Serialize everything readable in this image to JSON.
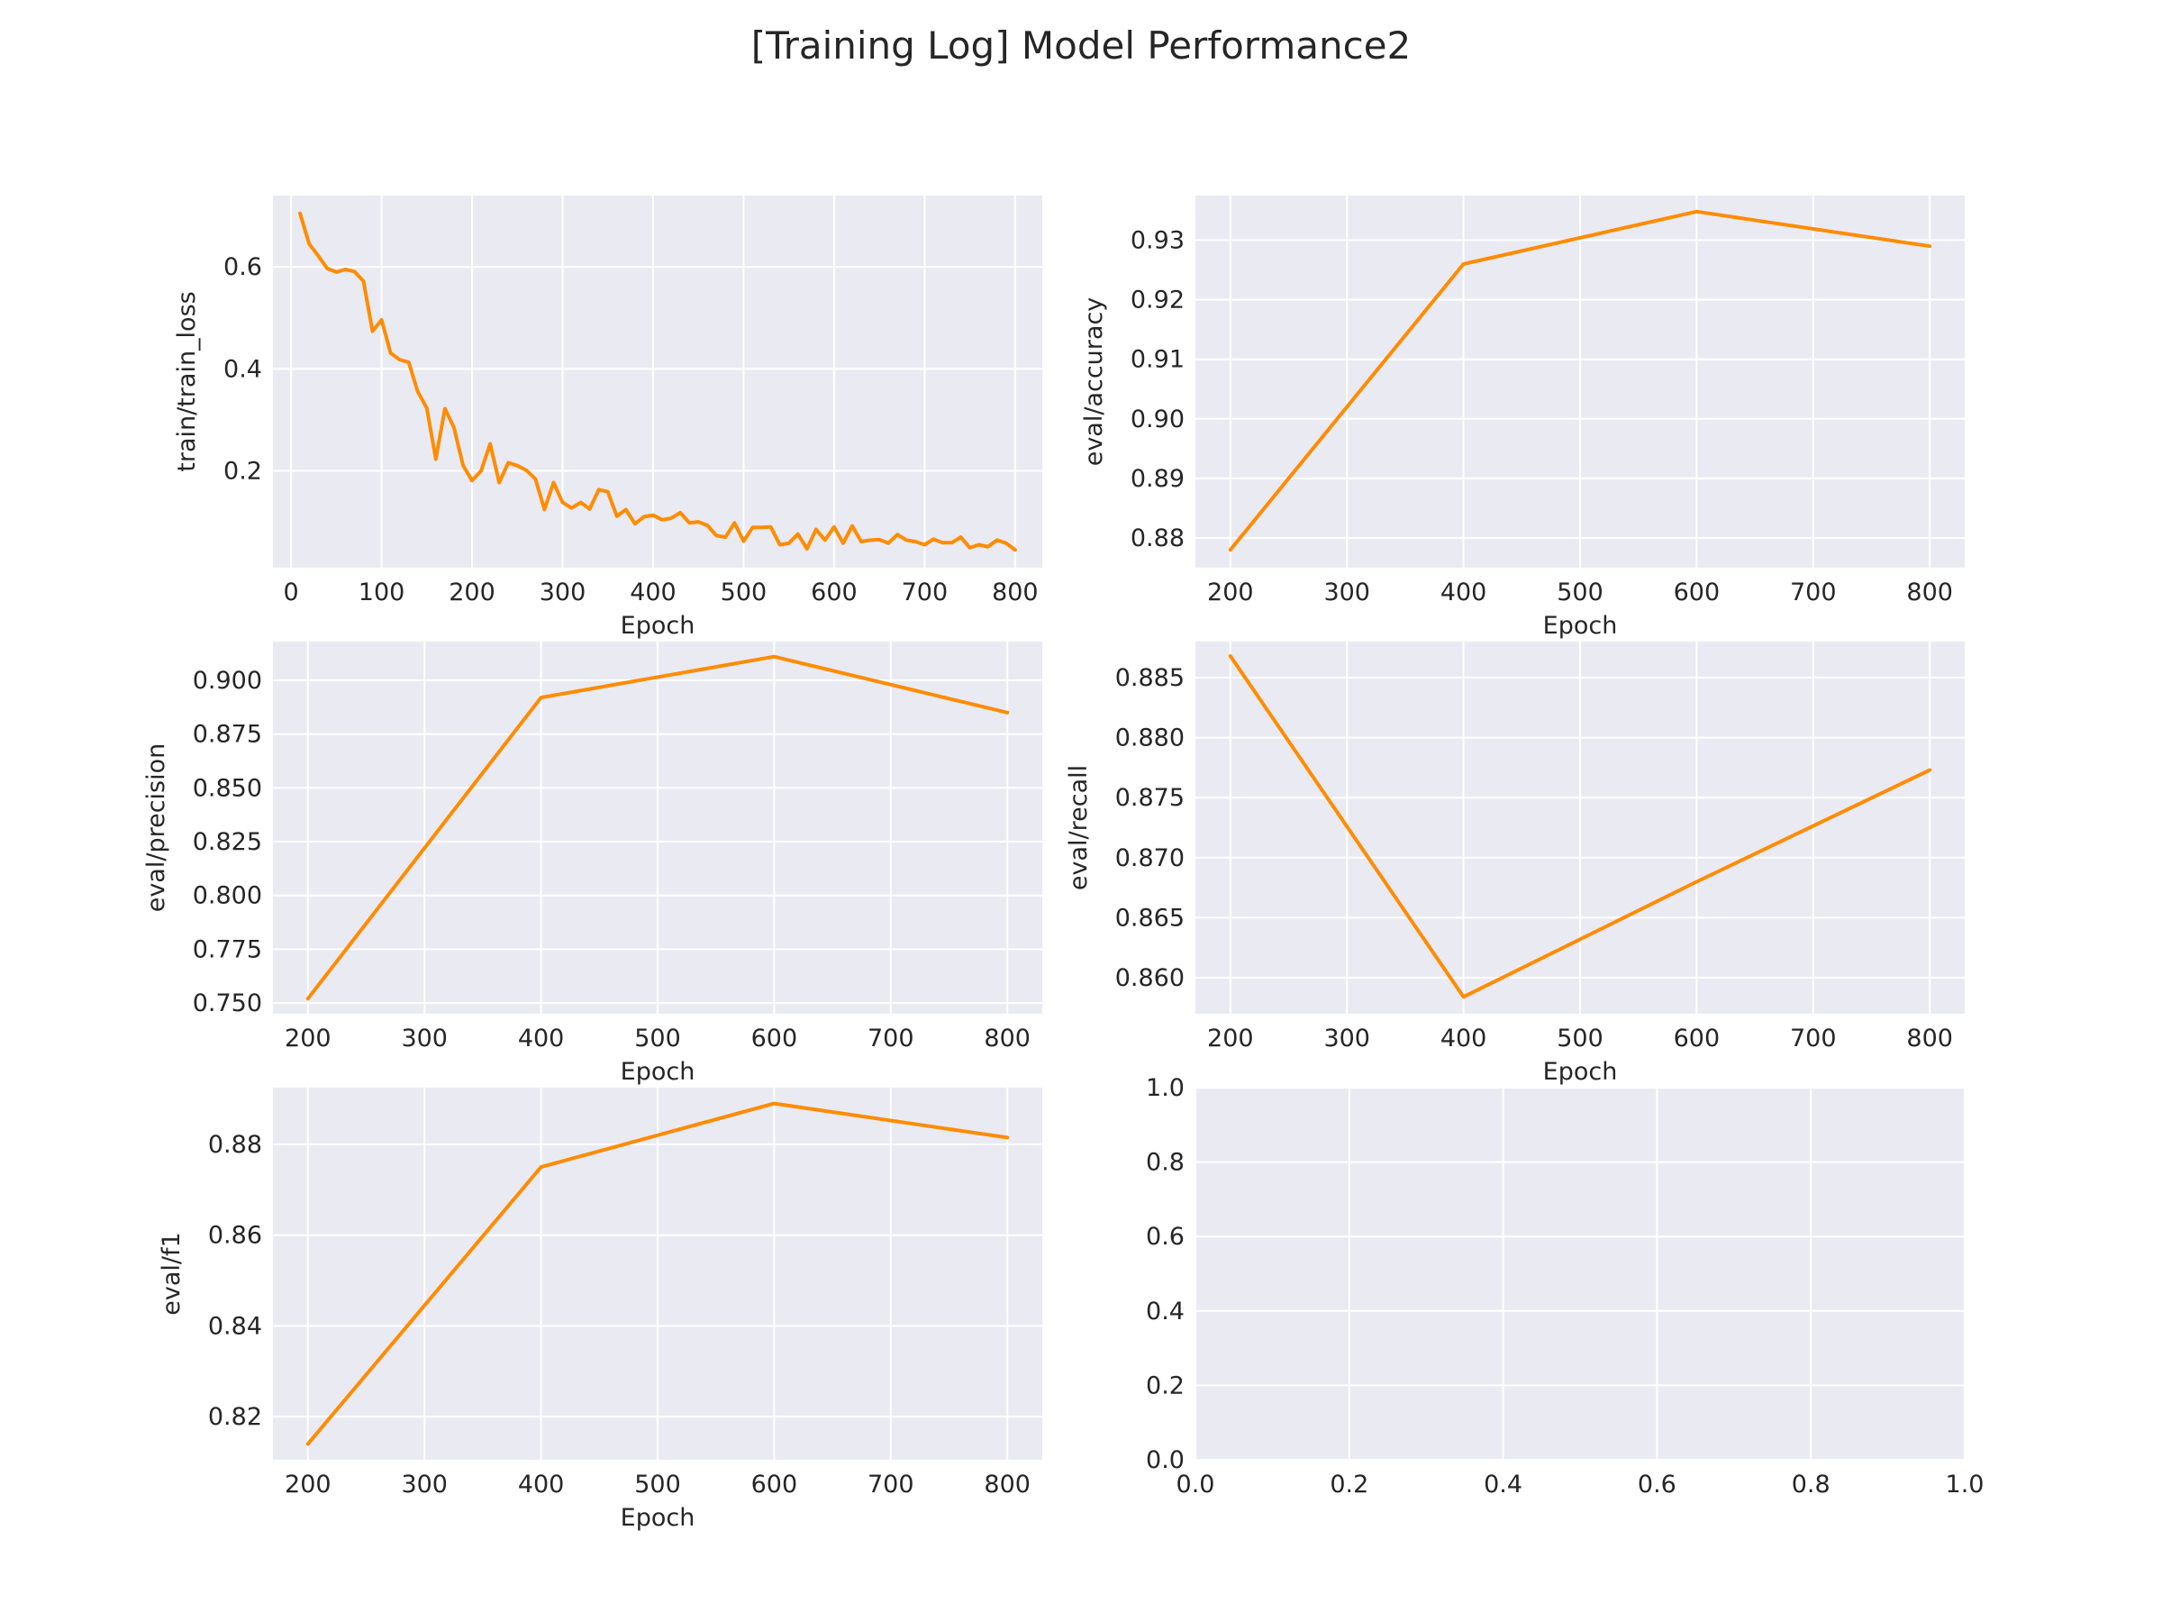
{
  "title": "[Training Log] Model Performance2",
  "colors": {
    "line": "#ff8c00",
    "panel_bg": "#eaeaf2",
    "grid": "#ffffff",
    "text": "#262626"
  },
  "chart_data": [
    {
      "type": "line",
      "xlabel": "Epoch",
      "ylabel": "train/train_loss",
      "xlim": [
        -20,
        830
      ],
      "ylim": [
        0.01,
        0.74
      ],
      "xticks": [
        0,
        100,
        200,
        300,
        400,
        500,
        600,
        700,
        800
      ],
      "yticks": [
        0.2,
        0.4,
        0.6
      ],
      "ytick_labels": [
        "0.2",
        "0.4",
        "0.6"
      ],
      "grid": true,
      "series": [
        {
          "x": [
            10,
            20,
            30,
            40,
            50,
            60,
            70,
            80,
            90,
            100,
            110,
            120,
            130,
            140,
            150,
            160,
            170,
            180,
            190,
            200,
            210,
            220,
            230,
            240,
            250,
            260,
            270,
            280,
            290,
            300,
            310,
            320,
            330,
            340,
            350,
            360,
            370,
            380,
            390,
            400,
            410,
            420,
            430,
            440,
            450,
            460,
            470,
            480,
            490,
            500,
            510,
            520,
            530,
            540,
            550,
            560,
            570,
            580,
            590,
            600,
            610,
            620,
            630,
            640,
            650,
            660,
            670,
            680,
            690,
            700,
            710,
            720,
            730,
            740,
            750,
            760,
            770,
            780,
            790,
            800
          ],
          "y": [
            0.705,
            0.645,
            0.622,
            0.597,
            0.59,
            0.595,
            0.591,
            0.572,
            0.474,
            0.496,
            0.431,
            0.418,
            0.413,
            0.355,
            0.323,
            0.223,
            0.322,
            0.285,
            0.211,
            0.181,
            0.2,
            0.253,
            0.177,
            0.216,
            0.21,
            0.201,
            0.184,
            0.124,
            0.177,
            0.138,
            0.127,
            0.138,
            0.125,
            0.163,
            0.159,
            0.111,
            0.124,
            0.096,
            0.11,
            0.113,
            0.104,
            0.107,
            0.118,
            0.098,
            0.1,
            0.093,
            0.073,
            0.07,
            0.098,
            0.062,
            0.089,
            0.089,
            0.09,
            0.055,
            0.058,
            0.076,
            0.047,
            0.085,
            0.064,
            0.09,
            0.058,
            0.092,
            0.061,
            0.064,
            0.065,
            0.058,
            0.075,
            0.064,
            0.061,
            0.055,
            0.066,
            0.059,
            0.059,
            0.07,
            0.049,
            0.055,
            0.051,
            0.064,
            0.058,
            0.045
          ]
        }
      ]
    },
    {
      "type": "line",
      "xlabel": "Epoch",
      "ylabel": "eval/accuracy",
      "xlim": [
        170,
        830
      ],
      "ylim": [
        0.875,
        0.9375
      ],
      "xticks": [
        200,
        300,
        400,
        500,
        600,
        700,
        800
      ],
      "yticks": [
        0.88,
        0.89,
        0.9,
        0.91,
        0.92,
        0.93
      ],
      "ytick_labels": [
        "0.88",
        "0.89",
        "0.90",
        "0.91",
        "0.92",
        "0.93"
      ],
      "grid": true,
      "series": [
        {
          "x": [
            200,
            400,
            600,
            800
          ],
          "y": [
            0.878,
            0.926,
            0.9348,
            0.929
          ]
        }
      ]
    },
    {
      "type": "line",
      "xlabel": "Epoch",
      "ylabel": "eval/precision",
      "xlim": [
        170,
        830
      ],
      "ylim": [
        0.745,
        0.918
      ],
      "xticks": [
        200,
        300,
        400,
        500,
        600,
        700,
        800
      ],
      "yticks": [
        0.75,
        0.775,
        0.8,
        0.825,
        0.85,
        0.875,
        0.9
      ],
      "ytick_labels": [
        "0.750",
        "0.775",
        "0.800",
        "0.825",
        "0.850",
        "0.875",
        "0.900"
      ],
      "grid": true,
      "series": [
        {
          "x": [
            200,
            400,
            600,
            800
          ],
          "y": [
            0.752,
            0.892,
            0.911,
            0.885
          ]
        }
      ]
    },
    {
      "type": "line",
      "xlabel": "Epoch",
      "ylabel": "eval/recall",
      "xlim": [
        170,
        830
      ],
      "ylim": [
        0.857,
        0.888
      ],
      "xticks": [
        200,
        300,
        400,
        500,
        600,
        700,
        800
      ],
      "yticks": [
        0.86,
        0.865,
        0.87,
        0.875,
        0.88,
        0.885
      ],
      "ytick_labels": [
        "0.860",
        "0.865",
        "0.870",
        "0.875",
        "0.880",
        "0.885"
      ],
      "grid": true,
      "series": [
        {
          "x": [
            200,
            400,
            600,
            800
          ],
          "y": [
            0.8868,
            0.8584,
            0.868,
            0.8773
          ]
        }
      ]
    },
    {
      "type": "line",
      "xlabel": "Epoch",
      "ylabel": "eval/f1",
      "xlim": [
        170,
        830
      ],
      "ylim": [
        0.8105,
        0.8925
      ],
      "xticks": [
        200,
        300,
        400,
        500,
        600,
        700,
        800
      ],
      "yticks": [
        0.82,
        0.84,
        0.86,
        0.88
      ],
      "ytick_labels": [
        "0.82",
        "0.84",
        "0.86",
        "0.88"
      ],
      "grid": true,
      "series": [
        {
          "x": [
            200,
            400,
            600,
            800
          ],
          "y": [
            0.814,
            0.875,
            0.889,
            0.8815
          ]
        }
      ]
    },
    {
      "type": "line",
      "xlabel": "",
      "ylabel": "",
      "xlim": [
        0,
        1
      ],
      "ylim": [
        0,
        1
      ],
      "xticks": [
        0,
        0.2,
        0.4,
        0.6,
        0.8,
        1.0
      ],
      "xtick_labels": [
        "0.0",
        "0.2",
        "0.4",
        "0.6",
        "0.8",
        "1.0"
      ],
      "yticks": [
        0,
        0.2,
        0.4,
        0.6,
        0.8,
        1.0
      ],
      "ytick_labels": [
        "0.0",
        "0.2",
        "0.4",
        "0.6",
        "0.8",
        "1.0"
      ],
      "grid": true,
      "series": []
    }
  ]
}
